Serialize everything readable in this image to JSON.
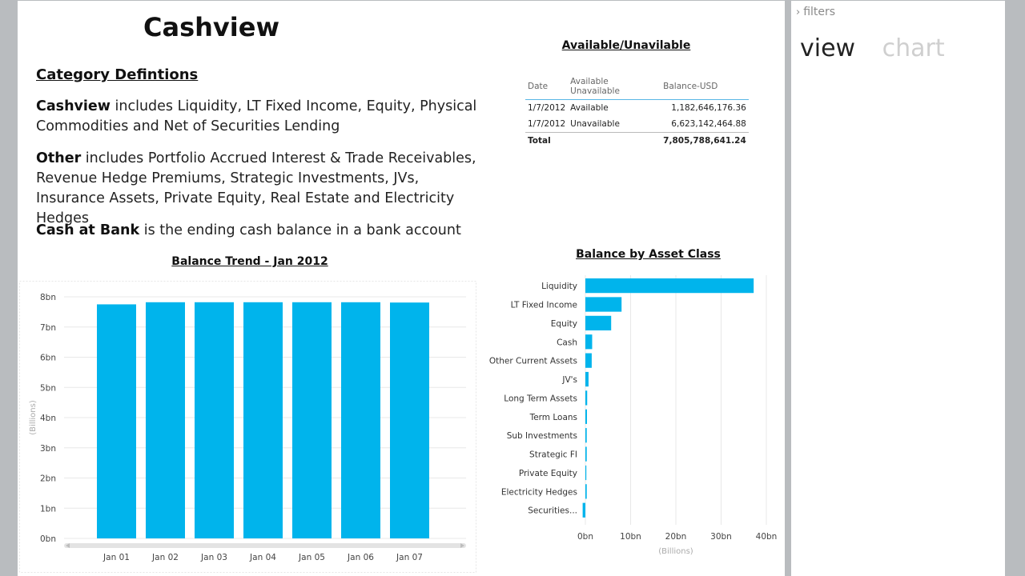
{
  "dashboard": {
    "title": "Cashview",
    "definitions_heading": "Category Defintions",
    "definitions": [
      {
        "term": "Cashview",
        "text": " includes Liquidity, LT Fixed Income, Equity, Physical Commodities and Net of Securities Lending"
      },
      {
        "term": "Other",
        "text": " includes Portfolio Accrued Interest & Trade Receivables, Revenue Hedge Premiums, Strategic Investments, JVs, Insurance Assets, Private Equity, Real Estate and Electricity Hedges"
      },
      {
        "term": "Cash at Bank",
        "text": " is the ending cash balance in a bank account"
      }
    ]
  },
  "side_panel": {
    "filters_label": "filters",
    "tabs": [
      {
        "label": "view",
        "active": true
      },
      {
        "label": "chart",
        "active": false
      }
    ]
  },
  "available_table": {
    "title": "Available/Unavilable",
    "columns": [
      "Date",
      "Available Unavailable",
      "Balance-USD"
    ],
    "rows": [
      [
        "1/7/2012",
        "Available",
        "1,182,646,176.36"
      ],
      [
        "1/7/2012",
        "Unavailable",
        "6,623,142,464.88"
      ]
    ],
    "total": {
      "label": "Total",
      "value": "7,805,788,641.24"
    }
  },
  "chart_data": [
    {
      "type": "bar",
      "title": "Balance Trend -  Jan 2012",
      "xlabel": "",
      "ylabel": "(Billions)",
      "categories": [
        "Jan 01",
        "Jan 02",
        "Jan 03",
        "Jan 04",
        "Jan 05",
        "Jan 06",
        "Jan 07"
      ],
      "values": [
        7.75,
        7.82,
        7.82,
        7.82,
        7.82,
        7.82,
        7.81
      ],
      "ylim": [
        0,
        8
      ],
      "yticks": [
        "0bn",
        "1bn",
        "2bn",
        "3bn",
        "4bn",
        "5bn",
        "6bn",
        "7bn",
        "8bn"
      ],
      "grid": true,
      "color": "#00b4ec"
    },
    {
      "type": "bar",
      "orientation": "horizontal",
      "title": "Balance by Asset Class",
      "xlabel": "(Billions)",
      "ylabel": "",
      "categories": [
        "Liquidity",
        "LT Fixed Income",
        "Equity",
        "Cash",
        "Other Current Assets",
        "JV's",
        "Long Term Assets",
        "Term Loans",
        "Sub Investments",
        "Strategic FI",
        "Private Equity",
        "Electricity Hedges",
        "Securities..."
      ],
      "values": [
        37.2,
        8.0,
        5.7,
        1.5,
        1.4,
        0.7,
        0.4,
        0.35,
        0.3,
        0.3,
        0.05,
        0.3,
        -0.6
      ],
      "xlim": [
        0,
        40
      ],
      "xticks": [
        "0bn",
        "10bn",
        "20bn",
        "30bn",
        "40bn"
      ],
      "grid": true,
      "color": "#00b4ec"
    }
  ]
}
